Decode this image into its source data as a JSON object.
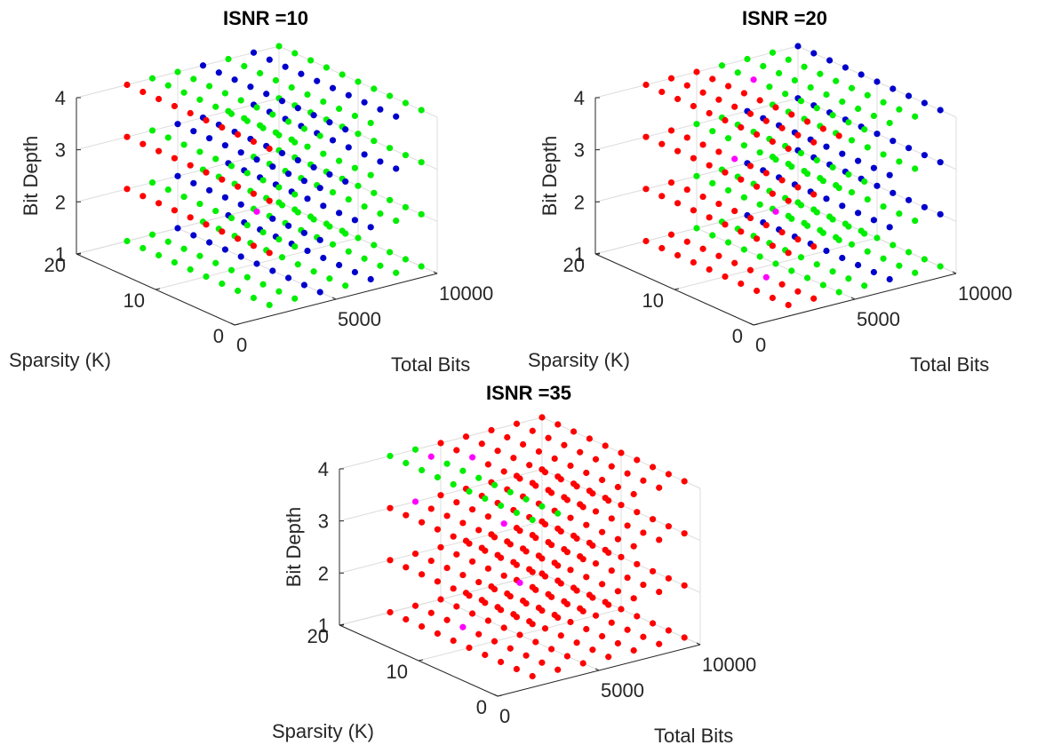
{
  "colors": {
    "red": "#ff0000",
    "green": "#00ee00",
    "blue": "#0000cc",
    "magenta": "#ff00ff",
    "axis": "#262626",
    "grid": "#dcdcdc"
  },
  "chart_data": [
    {
      "type": "scatter3d",
      "title": "ISNR =10",
      "xlabel": "Total Bits",
      "ylabel": "Sparsity (K)",
      "zlabel": "Bit Depth",
      "xlim": [
        0,
        10000
      ],
      "ylim": [
        0,
        20
      ],
      "zlim": [
        1,
        4
      ],
      "xticks": [
        "0",
        "5000",
        "10000"
      ],
      "yticks": [
        "0",
        "10",
        "20"
      ],
      "zticks": [
        "1",
        "2",
        "3",
        "4"
      ],
      "grid": true,
      "point_grid": {
        "total_bits_values": [
          2500,
          3750,
          5000,
          6250,
          7500,
          8750,
          10000
        ],
        "sparsity_values": [
          2,
          4,
          6,
          8,
          10,
          12,
          14,
          16,
          18,
          20
        ],
        "bit_depth_values": [
          1,
          2,
          3,
          4
        ]
      },
      "region_colors": {
        "bit_depth_1": [
          "green",
          "green",
          "blue",
          "green",
          "blue",
          "green",
          "green"
        ],
        "bit_depth_2": [
          "red",
          "green",
          "blue",
          "green",
          "blue",
          "green",
          "green"
        ],
        "bit_depth_3": [
          "red",
          "green",
          "blue",
          "blue",
          "green",
          "blue",
          "green"
        ],
        "bit_depth_4": [
          "red",
          "green",
          "green",
          "blue",
          "green",
          "blue",
          "green"
        ]
      },
      "highlight": [
        {
          "total_bits": 5000,
          "sparsity": 10,
          "bit_depth": 2,
          "color": "magenta"
        }
      ]
    },
    {
      "type": "scatter3d",
      "title": "ISNR =20",
      "xlabel": "Total Bits",
      "ylabel": "Sparsity (K)",
      "zlabel": "Bit Depth",
      "xlim": [
        0,
        10000
      ],
      "ylim": [
        0,
        20
      ],
      "zlim": [
        1,
        4
      ],
      "xticks": [
        "0",
        "5000",
        "10000"
      ],
      "yticks": [
        "0",
        "10",
        "20"
      ],
      "zticks": [
        "1",
        "2",
        "3",
        "4"
      ],
      "grid": true,
      "point_grid": {
        "total_bits_values": [
          2500,
          3750,
          5000,
          6250,
          7500,
          8750,
          10000
        ],
        "sparsity_values": [
          2,
          4,
          6,
          8,
          10,
          12,
          14,
          16,
          18,
          20
        ],
        "bit_depth_values": [
          1,
          2,
          3,
          4
        ]
      },
      "region_colors": {
        "bit_depth_1": [
          "red",
          "red",
          "green",
          "green",
          "blue",
          "green",
          "green"
        ],
        "bit_depth_2": [
          "red",
          "red",
          "green",
          "green",
          "blue",
          "green",
          "blue"
        ],
        "bit_depth_3": [
          "red",
          "red",
          "green",
          "green",
          "blue",
          "green",
          "blue"
        ],
        "bit_depth_4": [
          "red",
          "red",
          "red",
          "green",
          "green",
          "green",
          "blue"
        ]
      },
      "highlight": [
        {
          "total_bits": 3750,
          "sparsity": 12,
          "bit_depth": 3,
          "color": "magenta"
        },
        {
          "total_bits": 5000,
          "sparsity": 10,
          "bit_depth": 2,
          "color": "magenta"
        },
        {
          "total_bits": 3750,
          "sparsity": 8,
          "bit_depth": 1,
          "color": "magenta"
        },
        {
          "total_bits": 6250,
          "sparsity": 16,
          "bit_depth": 4,
          "color": "magenta"
        }
      ]
    },
    {
      "type": "scatter3d",
      "title": "ISNR =35",
      "xlabel": "Total Bits",
      "ylabel": "Sparsity (K)",
      "zlabel": "Bit Depth",
      "xlim": [
        0,
        10000
      ],
      "ylim": [
        0,
        20
      ],
      "zlim": [
        1,
        4
      ],
      "xticks": [
        "0",
        "5000",
        "10000"
      ],
      "yticks": [
        "0",
        "10",
        "20"
      ],
      "zticks": [
        "1",
        "2",
        "3",
        "4"
      ],
      "grid": true,
      "point_grid": {
        "total_bits_values": [
          2500,
          3750,
          5000,
          6250,
          7500,
          8750,
          10000
        ],
        "sparsity_values": [
          2,
          4,
          6,
          8,
          10,
          12,
          14,
          16,
          18,
          20
        ],
        "bit_depth_values": [
          1,
          2,
          3,
          4
        ]
      },
      "region_colors": {
        "bit_depth_1": [
          "red",
          "red",
          "red",
          "red",
          "red",
          "red",
          "red"
        ],
        "bit_depth_2": [
          "red",
          "red",
          "red",
          "red",
          "red",
          "red",
          "red"
        ],
        "bit_depth_3": [
          "red",
          "red",
          "red",
          "red",
          "red",
          "red",
          "red"
        ],
        "bit_depth_4": [
          "green",
          "green",
          "red",
          "red",
          "red",
          "red",
          "red"
        ]
      },
      "highlight": [
        {
          "total_bits": 3750,
          "sparsity": 18,
          "bit_depth": 4,
          "color": "magenta"
        },
        {
          "total_bits": 5000,
          "sparsity": 16,
          "bit_depth": 4,
          "color": "magenta"
        },
        {
          "total_bits": 5000,
          "sparsity": 12,
          "bit_depth": 3,
          "color": "magenta"
        },
        {
          "total_bits": 3750,
          "sparsity": 20,
          "bit_depth": 3,
          "color": "magenta"
        },
        {
          "total_bits": 5000,
          "sparsity": 10,
          "bit_depth": 2,
          "color": "magenta"
        },
        {
          "total_bits": 3750,
          "sparsity": 14,
          "bit_depth": 1,
          "color": "magenta"
        }
      ]
    }
  ]
}
